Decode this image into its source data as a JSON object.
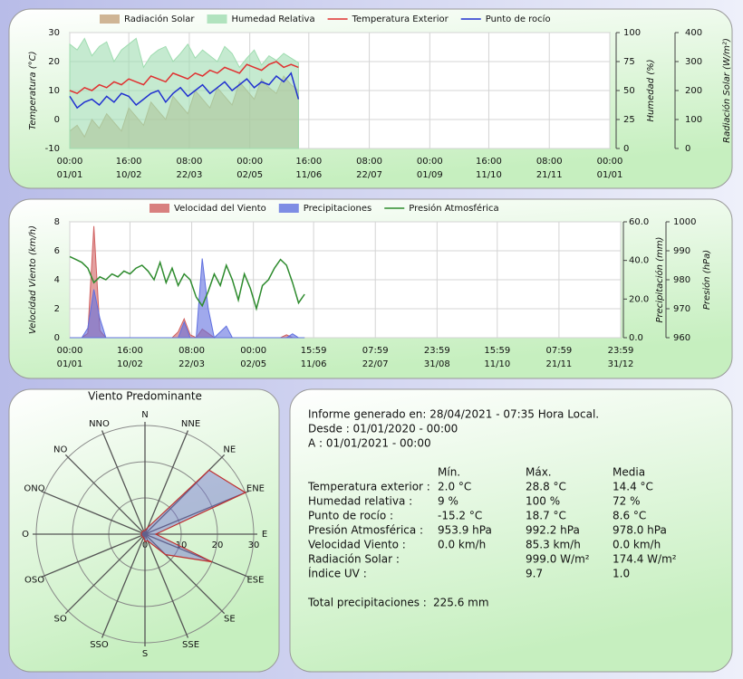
{
  "chart_data": [
    {
      "type": "line",
      "series": [
        {
          "name": "Radiación Solar",
          "kind": "area",
          "axis": "y3",
          "color": "#c4a27c",
          "values": [
            60,
            80,
            40,
            100,
            70,
            120,
            90,
            60,
            140,
            110,
            80,
            160,
            130,
            100,
            180,
            150,
            120,
            200,
            170,
            140,
            210,
            180,
            150,
            230,
            200,
            170,
            240,
            210,
            190,
            250,
            220,
            200
          ]
        },
        {
          "name": "Humedad Relativa",
          "kind": "area",
          "axis": "y2",
          "color": "#9fdcb0",
          "values": [
            90,
            85,
            95,
            80,
            88,
            92,
            75,
            85,
            90,
            95,
            70,
            80,
            85,
            88,
            75,
            82,
            90,
            78,
            85,
            80,
            75,
            88,
            82,
            70,
            78,
            85,
            72,
            80,
            76,
            82,
            78,
            74
          ]
        },
        {
          "name": "Temperatura Exterior",
          "kind": "line",
          "axis": "y",
          "color": "#e03030",
          "values": [
            10,
            9,
            11,
            10,
            12,
            11,
            13,
            12,
            14,
            13,
            12,
            15,
            14,
            13,
            16,
            15,
            14,
            16,
            15,
            17,
            16,
            18,
            17,
            16,
            19,
            18,
            17,
            19,
            20,
            18,
            19,
            18
          ]
        },
        {
          "name": "Punto de rocío",
          "kind": "line",
          "axis": "y",
          "color": "#2030d0",
          "values": [
            8,
            4,
            6,
            7,
            5,
            8,
            6,
            9,
            8,
            5,
            7,
            9,
            10,
            6,
            9,
            11,
            8,
            10,
            12,
            9,
            11,
            13,
            10,
            12,
            14,
            11,
            13,
            12,
            15,
            13,
            16,
            7
          ]
        }
      ],
      "x": [
        0,
        5,
        10,
        15,
        20,
        25,
        30,
        35,
        40,
        45,
        50,
        55,
        60,
        65,
        70,
        75,
        80,
        85,
        90,
        95,
        100,
        105,
        110,
        115,
        120,
        125,
        130,
        135,
        140,
        145,
        150,
        155
      ],
      "xlim": [
        0,
        366
      ],
      "xticks": [
        {
          "value": 0,
          "label": [
            "00:00",
            "01/01"
          ]
        },
        {
          "value": 40,
          "label": [
            "16:00",
            "10/02"
          ]
        },
        {
          "value": 81,
          "label": [
            "08:00",
            "22/03"
          ]
        },
        {
          "value": 122,
          "label": [
            "00:00",
            "02/05"
          ]
        },
        {
          "value": 162,
          "label": [
            "16:00",
            "11/06"
          ]
        },
        {
          "value": 203,
          "label": [
            "08:00",
            "22/07"
          ]
        },
        {
          "value": 244,
          "label": [
            "00:00",
            "01/09"
          ]
        },
        {
          "value": 284,
          "label": [
            "16:00",
            "11/10"
          ]
        },
        {
          "value": 325,
          "label": [
            "08:00",
            "21/11"
          ]
        },
        {
          "value": 366,
          "label": [
            "00:00",
            "01/01"
          ]
        }
      ],
      "ylabel": "Temperatura (°C)",
      "ylim": [
        -10,
        30
      ],
      "yticks": [
        -10,
        0,
        10,
        20,
        30
      ],
      "y2label": "Humedad (%)",
      "y2lim": [
        0,
        100
      ],
      "y2ticks": [
        0,
        25,
        50,
        75,
        100
      ],
      "y3label": "Radiación Solar (W/m²)",
      "y3lim": [
        0,
        400
      ],
      "y3ticks": [
        0,
        100,
        200,
        300,
        400
      ],
      "grid": true
    },
    {
      "type": "line",
      "series": [
        {
          "name": "Velocidad del Viento",
          "kind": "area",
          "axis": "y",
          "color": "#d06060",
          "values": [
            0,
            0,
            0,
            0.3,
            7.7,
            0.5,
            0,
            0,
            0,
            0,
            0,
            0,
            0,
            0,
            0,
            0,
            0,
            0,
            0.4,
            1.3,
            0.2,
            0,
            0.6,
            0.3,
            0,
            0,
            0,
            0,
            0,
            0,
            0,
            0,
            0,
            0,
            0,
            0,
            0.2,
            0,
            0,
            0
          ]
        },
        {
          "name": "Precipitaciones",
          "kind": "area",
          "axis": "y2",
          "color": "#6070e0",
          "values": [
            0,
            0,
            0,
            5,
            25,
            10,
            0,
            0,
            0,
            0,
            0,
            0,
            0,
            0,
            0,
            0,
            0,
            0,
            0,
            8,
            0,
            0,
            41,
            15,
            0,
            3,
            6,
            0,
            0,
            0,
            0,
            0,
            0,
            0,
            0,
            0,
            0,
            2,
            0,
            0
          ]
        },
        {
          "name": "Presión Atmosférica",
          "kind": "line",
          "axis": "y3",
          "color": "#2e8b2e",
          "values": [
            988,
            987,
            986,
            984,
            979,
            981,
            980,
            982,
            981,
            983,
            982,
            984,
            985,
            983,
            980,
            986,
            979,
            984,
            978,
            982,
            980,
            974,
            971,
            976,
            982,
            978,
            985,
            980,
            973,
            982,
            977,
            970,
            978,
            980,
            984,
            987,
            985,
            979,
            972,
            975
          ]
        }
      ],
      "x": [
        0,
        4,
        8,
        12,
        16,
        20,
        24,
        28,
        32,
        36,
        40,
        44,
        48,
        52,
        56,
        60,
        64,
        68,
        72,
        76,
        80,
        84,
        88,
        92,
        96,
        100,
        104,
        108,
        112,
        116,
        120,
        124,
        128,
        132,
        136,
        140,
        144,
        148,
        152,
        156
      ],
      "xlim": [
        0,
        366
      ],
      "xticks": [
        {
          "value": 0,
          "label": [
            "00:00",
            "01/01"
          ]
        },
        {
          "value": 40,
          "label": [
            "16:00",
            "10/02"
          ]
        },
        {
          "value": 81,
          "label": [
            "08:00",
            "22/03"
          ]
        },
        {
          "value": 122,
          "label": [
            "00:00",
            "02/05"
          ]
        },
        {
          "value": 162,
          "label": [
            "15:59",
            "11/06"
          ]
        },
        {
          "value": 203,
          "label": [
            "07:59",
            "22/07"
          ]
        },
        {
          "value": 244,
          "label": [
            "23:59",
            "31/08"
          ]
        },
        {
          "value": 284,
          "label": [
            "15:59",
            "11/10"
          ]
        },
        {
          "value": 325,
          "label": [
            "07:59",
            "21/11"
          ]
        },
        {
          "value": 366,
          "label": [
            "23:59",
            "31/12"
          ]
        }
      ],
      "ylabel": "Velocidad Viento (km/h)",
      "ylim": [
        0,
        8
      ],
      "yticks": [
        0,
        2,
        4,
        6,
        8
      ],
      "y2label": "Precipitación (mm)",
      "y2lim": [
        0,
        60
      ],
      "y2ticks": [
        {
          "value": 0,
          "label": "0.0"
        },
        {
          "value": 20,
          "label": "20.0"
        },
        {
          "value": 40,
          "label": "40.0"
        },
        {
          "value": 60,
          "label": "60.0"
        }
      ],
      "y3label": "Presión (hPa)",
      "y3lim": [
        960,
        1000
      ],
      "y3ticks": [
        960,
        970,
        980,
        990,
        1000
      ],
      "grid": true
    },
    {
      "type": "windrose",
      "title": "Viento Predominante",
      "categories": [
        "N",
        "NNE",
        "NE",
        "ENE",
        "E",
        "ESE",
        "SE",
        "SSE",
        "S",
        "SSO",
        "SO",
        "OSO",
        "O",
        "ONO",
        "NO",
        "NNO"
      ],
      "values": [
        1,
        2,
        25,
        30,
        3,
        20,
        8,
        2,
        2,
        1,
        1,
        1,
        1,
        1,
        1,
        1
      ],
      "color": "#7070d0",
      "edge_color": "#c03030",
      "rlim": [
        0,
        30
      ],
      "rticks": [
        0,
        10,
        20,
        30
      ]
    }
  ],
  "report": {
    "generated": "Informe generado en: 28/04/2021 - 07:35 Hora Local.",
    "from": "Desde : 01/01/2020 - 00:00",
    "to": "A : 01/01/2021 - 00:00",
    "columns": [
      "Mín.",
      "Máx.",
      "Media"
    ],
    "rows": [
      [
        "Temperatura exterior :",
        "2.0 °C",
        "28.8 °C",
        "14.4 °C"
      ],
      [
        "Humedad relativa :",
        "9 %",
        "100 %",
        "72 %"
      ],
      [
        "Punto de rocío :",
        "-15.2 °C",
        "18.7 °C",
        "8.6 °C"
      ],
      [
        "Presión Atmosférica :",
        "953.9 hPa",
        "992.2 hPa",
        "978.0 hPa"
      ],
      [
        "Velocidad Viento :",
        "0.0 km/h",
        "85.3 km/h",
        "0.0 km/h"
      ],
      [
        "Radiación Solar :",
        null,
        "999.0 W/m²",
        "174.4 W/m²"
      ],
      [
        "Índice UV :",
        null,
        "9.7",
        "1.0"
      ]
    ],
    "total_label": "Total precipitaciones :",
    "total_value": "225.6 mm"
  }
}
